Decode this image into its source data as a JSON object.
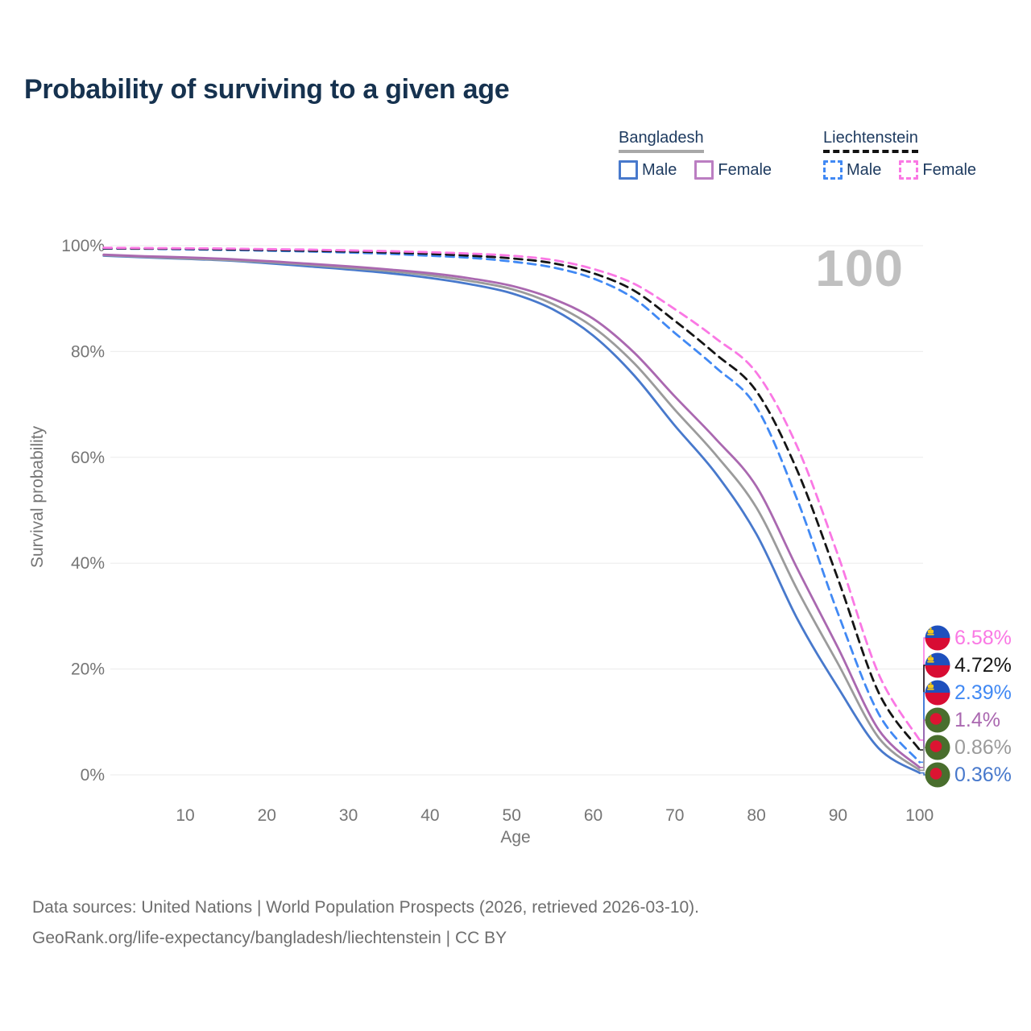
{
  "title": "Probability of surviving to a given age",
  "watermark_age": "100",
  "legend": {
    "groups": [
      {
        "country": "Bangladesh",
        "underline_color": "#a8a8a8",
        "underline_style": "solid",
        "items": [
          {
            "label": "Male",
            "color": "#4879cc",
            "swatch_style": "solid"
          },
          {
            "label": "Female",
            "color": "#bb7ec2",
            "swatch_style": "solid"
          }
        ]
      },
      {
        "country": "Liechtenstein",
        "underline_color": "#111111",
        "underline_style": "dashed",
        "items": [
          {
            "label": "Male",
            "color": "#4189f4",
            "swatch_style": "dashed"
          },
          {
            "label": "Female",
            "color": "#fa78e4",
            "swatch_style": "dashed"
          }
        ]
      }
    ]
  },
  "chart_data": {
    "type": "line",
    "title": "Probability of surviving to a given age",
    "xlabel": "Age",
    "ylabel": "Survival probability",
    "xlim": [
      0,
      100
    ],
    "ylim": [
      0,
      100
    ],
    "grid": "horizontal-only",
    "legend_position": "top-right",
    "age_marker": "100",
    "x_tick_labels": [
      "10",
      "20",
      "30",
      "40",
      "50",
      "60",
      "70",
      "80",
      "90",
      "100"
    ],
    "x_tick_values": [
      10,
      20,
      30,
      40,
      50,
      60,
      70,
      80,
      90,
      100
    ],
    "y_tick_labels": [
      "0%",
      "20%",
      "40%",
      "60%",
      "80%",
      "100%"
    ],
    "y_tick_values": [
      0,
      20,
      40,
      60,
      80,
      100
    ],
    "x": [
      0,
      5,
      10,
      15,
      20,
      25,
      30,
      35,
      40,
      45,
      50,
      55,
      60,
      65,
      70,
      75,
      80,
      85,
      90,
      95,
      100
    ],
    "series": [
      {
        "name": "Bangladesh Male",
        "country": "Bangladesh",
        "sex": "Male",
        "color": "#4879cc",
        "line_style": "solid",
        "flag": "bangladesh",
        "end_label": "0.36%",
        "end_value": 0.36,
        "values": [
          98.1,
          97.8,
          97.5,
          97.2,
          96.7,
          96.1,
          95.5,
          94.8,
          93.9,
          92.7,
          91.0,
          88.0,
          83.0,
          75.5,
          66.0,
          57.0,
          45.5,
          29.5,
          16.5,
          5.0,
          0.36
        ]
      },
      {
        "name": "Bangladesh Both sexes",
        "country": "Bangladesh",
        "sex": "Both",
        "color": "#9b9b9b",
        "line_style": "solid",
        "flag": "bangladesh",
        "end_label": "0.86%",
        "end_value": 0.86,
        "values": [
          98.2,
          97.9,
          97.6,
          97.3,
          96.9,
          96.4,
          95.8,
          95.2,
          94.4,
          93.3,
          91.8,
          89.0,
          84.6,
          77.8,
          69.0,
          60.5,
          50.5,
          35.0,
          21.0,
          7.0,
          0.86
        ]
      },
      {
        "name": "Bangladesh Female",
        "country": "Bangladesh",
        "sex": "Female",
        "color": "#aa68b0",
        "line_style": "solid",
        "flag": "bangladesh",
        "end_label": "1.4%",
        "end_value": 1.4,
        "values": [
          98.3,
          98.0,
          97.8,
          97.5,
          97.1,
          96.6,
          96.1,
          95.5,
          94.8,
          93.8,
          92.4,
          90.0,
          86.2,
          79.8,
          71.5,
          63.5,
          54.5,
          39.0,
          24.0,
          8.5,
          1.4
        ]
      },
      {
        "name": "Liechtenstein Male",
        "country": "Liechtenstein",
        "sex": "Male",
        "color": "#4189f4",
        "line_style": "dashed",
        "flag": "liechtenstein",
        "end_label": "2.39%",
        "end_value": 2.39,
        "values": [
          99.45,
          99.4,
          99.3,
          99.2,
          99.05,
          98.9,
          98.7,
          98.45,
          98.1,
          97.7,
          97.0,
          95.9,
          93.8,
          90.0,
          83.5,
          77.0,
          69.5,
          52.0,
          30.5,
          11.5,
          2.39
        ]
      },
      {
        "name": "Liechtenstein Both sexes",
        "country": "Liechtenstein",
        "sex": "Both",
        "color": "#151515",
        "line_style": "dashed",
        "flag": "liechtenstein",
        "end_label": "4.72%",
        "end_value": 4.72,
        "values": [
          99.5,
          99.45,
          99.4,
          99.3,
          99.2,
          99.05,
          98.9,
          98.7,
          98.45,
          98.1,
          97.6,
          96.7,
          94.8,
          91.5,
          85.8,
          79.5,
          72.5,
          57.5,
          37.0,
          15.5,
          4.72
        ]
      },
      {
        "name": "Liechtenstein Female",
        "country": "Liechtenstein",
        "sex": "Female",
        "color": "#fa78e4",
        "line_style": "dashed",
        "flag": "liechtenstein",
        "end_label": "6.58%",
        "end_value": 6.58,
        "values": [
          99.6,
          99.55,
          99.5,
          99.45,
          99.35,
          99.25,
          99.1,
          98.95,
          98.75,
          98.5,
          98.1,
          97.3,
          95.6,
          92.8,
          88.0,
          82.5,
          76.0,
          62.0,
          41.5,
          19.0,
          6.58
        ]
      }
    ],
    "flags": {
      "liechtenstein": {
        "top": "#1e50bd",
        "bottom": "#d80c33",
        "crown": "#f2c71b"
      },
      "bangladesh": {
        "field": "#496e2d",
        "disc": "#dc1432"
      }
    }
  },
  "footer": {
    "line1": "Data sources: United Nations | World Population Prospects (2026, retrieved 2026-03-10).",
    "line2": "GeoRank.org/life-expectancy/bangladesh/liechtenstein | CC BY"
  }
}
